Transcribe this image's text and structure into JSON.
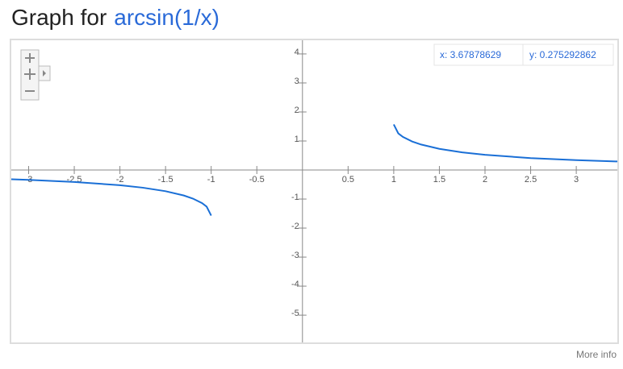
{
  "chart_data": {
    "type": "line",
    "title": "Graph for",
    "function": "arcsin(1/x)",
    "x": [
      -3.19,
      -3,
      -2.5,
      -2,
      -1.75,
      -1.5,
      -1.3,
      -1.2,
      -1.1,
      -1.05,
      -1,
      0,
      1,
      1.05,
      1.1,
      1.2,
      1.3,
      1.5,
      1.75,
      2,
      2.5,
      3,
      3.45
    ],
    "series": [
      {
        "color": "#1a6fd6",
        "values": [
          -0.3189,
          -0.3398,
          -0.4115,
          -0.5236,
          -0.6082,
          -0.7297,
          -0.8776,
          -0.9851,
          -1.1411,
          -1.261,
          -1.5708,
          null,
          1.5708,
          1.261,
          1.1411,
          0.9851,
          0.8776,
          0.7297,
          0.6082,
          0.5236,
          0.4115,
          0.3398,
          0.2941
        ]
      }
    ],
    "xlim": [
      -3.19,
      3.45
    ],
    "ylim": [
      -5.94,
      4.47
    ],
    "xticks": [
      -3,
      -2.5,
      -2,
      -1.5,
      -1,
      -0.5,
      0.5,
      1,
      1.5,
      2,
      2.5,
      3
    ],
    "yticks": [
      4,
      3,
      2,
      1,
      -1,
      -2,
      -3,
      -4,
      -5
    ],
    "grid": false,
    "readout": {
      "x": "x: 3.67878629",
      "y": "y: 0.275292862"
    },
    "more_info": "More info"
  }
}
